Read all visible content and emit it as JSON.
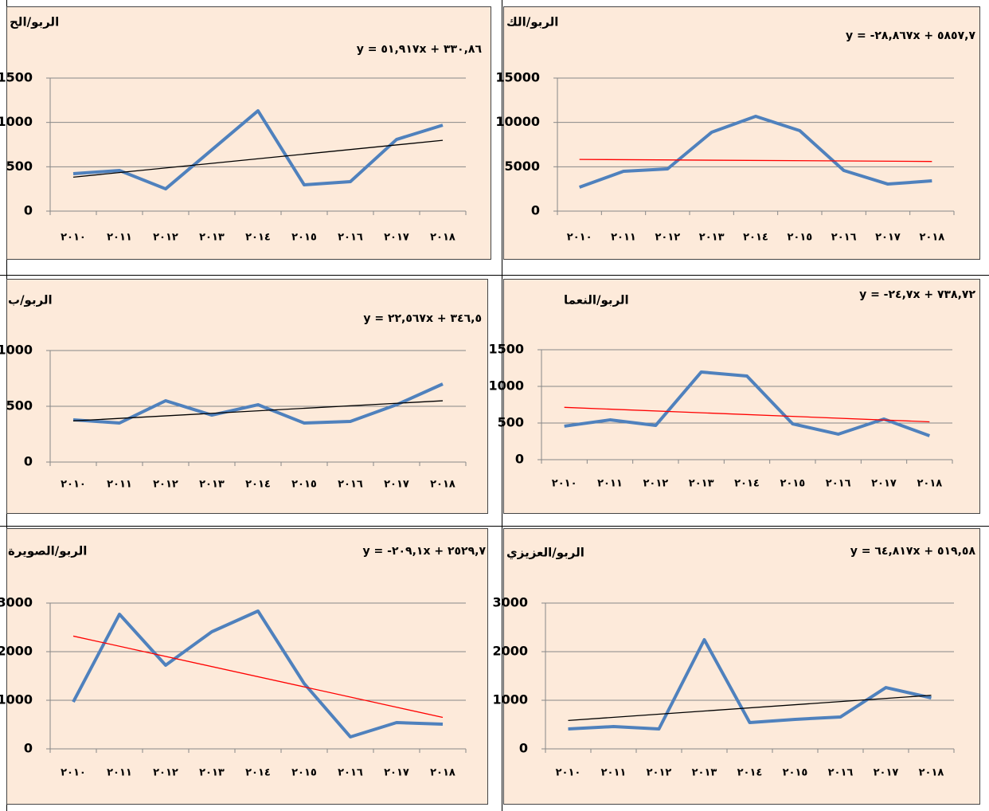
{
  "chart_data": [
    {
      "type": "line",
      "title": "الربو/الح",
      "categories": [
        "٢٠١٠",
        "٢٠١١",
        "٢٠١٢",
        "٢٠١٣",
        "٢٠١٤",
        "٢٠١٥",
        "٢٠١٦",
        "٢٠١٧",
        "٢٠١٨"
      ],
      "values": [
        422,
        458,
        251,
        691,
        1131,
        296,
        332,
        808,
        969
      ],
      "color": "#4f81bd",
      "ylim": [
        0,
        1500
      ],
      "yticks": [
        0,
        500,
        1000,
        1500
      ],
      "grid": true,
      "trendline": {
        "label": "y = ٥١,٩١٧x + ٣٣٠,٨٦",
        "slope": 51.917,
        "intercept": 330.86,
        "color": "#000000"
      }
    },
    {
      "type": "line",
      "title": "الربو/الك",
      "categories": [
        "٢٠١٠",
        "٢٠١١",
        "٢٠١٢",
        "٢٠١٣",
        "٢٠١٤",
        "٢٠١٥",
        "٢٠١٦",
        "٢٠١٧",
        "٢٠١٨"
      ],
      "values": [
        2690,
        4490,
        4760,
        8890,
        10690,
        9070,
        4580,
        3050,
        3410
      ],
      "color": "#4f81bd",
      "ylim": [
        0,
        15000
      ],
      "yticks": [
        0,
        5000,
        10000,
        15000
      ],
      "grid": true,
      "trendline": {
        "label": "y = -٢٨,٨٦٧x + ٥٨٥٧,٧",
        "slope": -28.867,
        "intercept": 5857.7,
        "color": "#ff0000"
      }
    },
    {
      "type": "line",
      "title": "الربو/ب",
      "categories": [
        "٢٠١٠",
        "٢٠١١",
        "٢٠١٢",
        "٢٠١٣",
        "٢٠١٤",
        "٢٠١٥",
        "٢٠١٦",
        "٢٠١٧",
        "٢٠١٨"
      ],
      "values": [
        379,
        350,
        550,
        421,
        514,
        350,
        364,
        514,
        700
      ],
      "color": "#4f81bd",
      "ylim": [
        0,
        1000
      ],
      "yticks": [
        0,
        500,
        1000
      ],
      "grid": true,
      "trendline": {
        "label": "y = ٢٢,٥٦٧x + ٣٤٦,٥",
        "slope": 22.567,
        "intercept": 346.5,
        "color": "#000000"
      }
    },
    {
      "type": "line",
      "title": "الربو/النعما",
      "categories": [
        "٢٠١٠",
        "٢٠١١",
        "٢٠١٢",
        "٢٠١٣",
        "٢٠١٤",
        "٢٠١٥",
        "٢٠١٦",
        "٢٠١٧",
        "٢٠١٨"
      ],
      "values": [
        457,
        543,
        467,
        1196,
        1141,
        489,
        348,
        554,
        326
      ],
      "color": "#4f81bd",
      "ylim": [
        0,
        1500
      ],
      "yticks": [
        0,
        500,
        1000,
        1500
      ],
      "grid": true,
      "trendline": {
        "label": "y = -٢٤,٧x + ٧٣٨,٧٢",
        "slope": -24.7,
        "intercept": 738.72,
        "color": "#ff0000"
      }
    },
    {
      "type": "line",
      "title": "الربو/الصويرة",
      "categories": [
        "٢٠١٠",
        "٢٠١١",
        "٢٠١٢",
        "٢٠١٣",
        "٢٠١٤",
        "٢٠١٥",
        "٢٠١٦",
        "٢٠١٧",
        "٢٠١٨"
      ],
      "values": [
        967,
        2770,
        1721,
        2410,
        2836,
        1344,
        246,
        541,
        508
      ],
      "color": "#4f81bd",
      "ylim": [
        0,
        3000
      ],
      "yticks": [
        0,
        1000,
        2000,
        3000
      ],
      "grid": true,
      "trendline": {
        "label": "y = -٢٠٩,١x + ٢٥٢٩,٧",
        "slope": -209.1,
        "intercept": 2529.7,
        "color": "#ff0000"
      }
    },
    {
      "type": "line",
      "title": "الربو/العزيزي",
      "categories": [
        "٢٠١٠",
        "٢٠١١",
        "٢٠١٢",
        "٢٠١٣",
        "٢٠١٤",
        "٢٠١٥",
        "٢٠١٦",
        "٢٠١٧",
        "٢٠١٨"
      ],
      "values": [
        410,
        459,
        410,
        2246,
        541,
        607,
        656,
        1262,
        1049
      ],
      "color": "#4f81bd",
      "ylim": [
        0,
        3000
      ],
      "yticks": [
        0,
        1000,
        2000,
        3000
      ],
      "grid": true,
      "trendline": {
        "label": "y = ٦٤,٨١٧x + ٥١٩,٥٨",
        "slope": 64.817,
        "intercept": 519.58,
        "color": "#000000"
      }
    }
  ]
}
